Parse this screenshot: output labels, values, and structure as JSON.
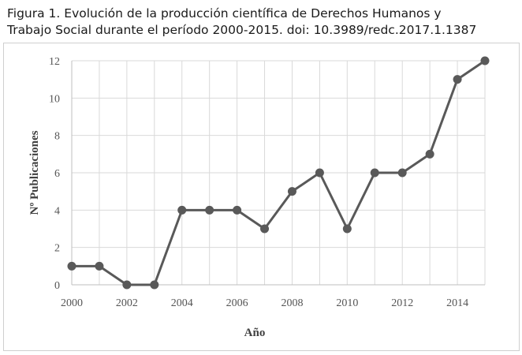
{
  "caption": {
    "line1": "Figura 1. Evolución de la producción científica de Derechos Humanos y",
    "line2": "Trabajo Social durante el período 2000-2015. doi: 10.3989/redc.2017.1.1387"
  },
  "chart_data": {
    "type": "line",
    "xlabel": "Año",
    "ylabel": "Nº Publicaciones",
    "x": [
      2000,
      2001,
      2002,
      2003,
      2004,
      2005,
      2006,
      2007,
      2008,
      2009,
      2010,
      2011,
      2012,
      2013,
      2014,
      2015
    ],
    "series": [
      {
        "values": [
          1,
          1,
          0,
          0,
          4,
          4,
          4,
          3,
          5,
          6,
          3,
          6,
          6,
          7,
          11,
          12
        ]
      }
    ],
    "xlim": [
      2000,
      2015
    ],
    "ylim": [
      0,
      12
    ],
    "x_ticks": [
      "2000",
      "2002",
      "2004",
      "2006",
      "2008",
      "2010",
      "2012",
      "2014"
    ],
    "y_ticks": [
      "0",
      "2",
      "4",
      "6",
      "8",
      "10",
      "12"
    ],
    "grid": true,
    "legend": "none",
    "line_color": "#595959",
    "grid_color": "#d9d9d9"
  }
}
